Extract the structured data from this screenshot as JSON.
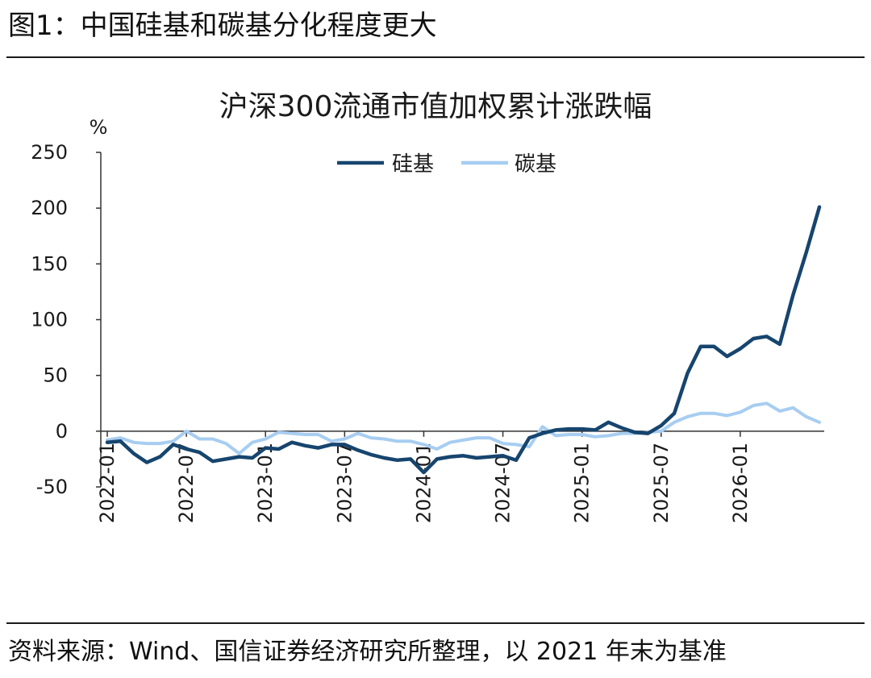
{
  "figure_title": "图1：中国硅基和碳基分化程度更大",
  "source_note": "资料来源：Wind、国信证券经济研究所整理，以 2021 年末为基准",
  "chart_data": {
    "type": "line",
    "title": "沪深300流通市值加权累计涨跌幅",
    "ylabel": "%",
    "ylim": [
      -50,
      250
    ],
    "yticks": [
      -50,
      0,
      50,
      100,
      150,
      200,
      250
    ],
    "xticks": [
      "2022-01",
      "2022-07",
      "2023-01",
      "2023-07",
      "2024-01",
      "2024-07",
      "2025-01",
      "2025-07",
      "2026-01"
    ],
    "xtick_index": [
      0,
      6,
      12,
      18,
      24,
      30,
      36,
      42,
      48
    ],
    "grid": false,
    "legend_position": "top-center",
    "series": [
      {
        "name": "硅基",
        "color": "#16456e",
        "values": [
          -10,
          -9,
          -20,
          -28,
          -23,
          -12,
          -16,
          -19,
          -27,
          -25,
          -23,
          -24,
          -15,
          -16,
          -10,
          -13,
          -15,
          -12,
          -12,
          -17,
          -21,
          -24,
          -26,
          -25,
          -37,
          -25,
          -23,
          -22,
          -24,
          -23,
          -22,
          -26,
          -6,
          -2,
          1,
          2,
          2,
          1,
          8,
          3,
          -1,
          -2,
          5,
          16,
          52,
          76,
          76,
          67,
          74,
          83,
          85,
          78,
          122,
          160,
          201
        ]
      },
      {
        "name": "碳基",
        "color": "#a7cdf1",
        "values": [
          -8,
          -6,
          -10,
          -11,
          -11,
          -9,
          0,
          -7,
          -7,
          -11,
          -20,
          -10,
          -7,
          -1,
          -2,
          -3,
          -3,
          -9,
          -7,
          -2,
          -6,
          -7,
          -9,
          -9,
          -12,
          -16,
          -10,
          -8,
          -6,
          -6,
          -11,
          -12,
          -14,
          4,
          -4,
          -3,
          -3,
          -5,
          -4,
          -2,
          -2,
          -1,
          0,
          8,
          13,
          16,
          16,
          14,
          17,
          23,
          25,
          18,
          21,
          13,
          8
        ]
      }
    ]
  }
}
